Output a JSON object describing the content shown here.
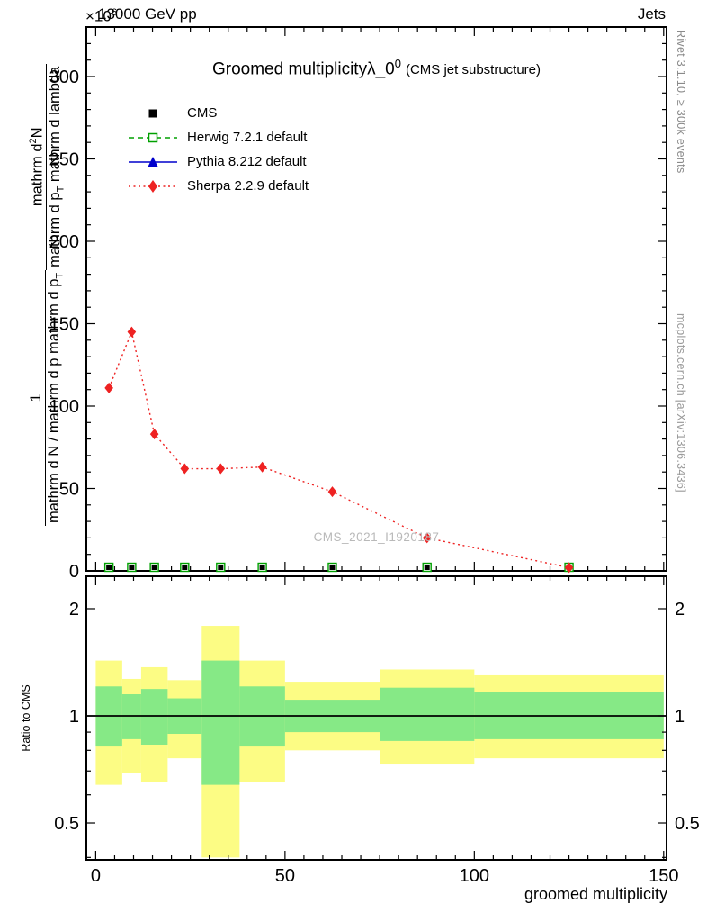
{
  "header": {
    "scale_prefix": "×10",
    "scale_exponent": "6",
    "beam": "13000 GeV pp",
    "right_label": "Jets"
  },
  "title": {
    "main": "Groomed multiplicity",
    "lambda": "λ_0",
    "superscript": "0",
    "suffix": "(CMS jet substructure)"
  },
  "legend": [
    {
      "label": "CMS",
      "marker": "square-filled",
      "line": "none",
      "color": "#000000"
    },
    {
      "label": "Herwig 7.2.1 default",
      "marker": "square-open",
      "line": "dashed",
      "color": "#00a000"
    },
    {
      "label": "Pythia 8.212 default",
      "marker": "triangle-filled",
      "line": "solid",
      "color": "#0000cc"
    },
    {
      "label": "Sherpa 2.2.9 default",
      "marker": "diamond-filled",
      "line": "dotted",
      "color": "#ee2222"
    }
  ],
  "axis_labels": {
    "ylabel_frac1_num": "1",
    "ylabel_frac1_den": "mathrm d N / mathrm d p mathrm d p",
    "ylabel_frac1_den_sub": "T",
    "ylabel_frac2_num_a": "mathrm d",
    "ylabel_frac2_num_sup": "2",
    "ylabel_frac2_num_b": "N",
    "ylabel_frac2_den_a": "mathrm d p",
    "ylabel_frac2_den_sub": "T",
    "ylabel_frac2_den_b": " mathrm d lambda",
    "ratio_ylabel": "Ratio to CMS",
    "xlabel": "groomed multiplicity"
  },
  "side_notes": {
    "top": "Rivet 3.1.10, ≥ 300k events",
    "bottom": "mcplots.cern.ch [arXiv:1306.3436]"
  },
  "watermark": "CMS_2021_I1920187",
  "colors": {
    "frame": "#000000",
    "sherpa_red": "#ee2222",
    "herwig_green": "#00a000",
    "pythia_blue": "#0000cc",
    "band_yellow": "#fcfc84",
    "band_green": "#86e986",
    "watermark_gray": "#b9b9b9"
  },
  "chart_data": {
    "type": "line",
    "title": "Groomed multiplicity λ_0^0 (CMS jet substructure)",
    "xlabel": "groomed multiplicity",
    "ylabel": "1 / (dN/dp_T) · d²N / (dp_T dλ)",
    "y_scale_factor": "×10^6",
    "xlim": [
      -2.5,
      151.5
    ],
    "ylim": [
      0,
      330
    ],
    "x_ticks": [
      0,
      50,
      100,
      150
    ],
    "y_ticks": [
      0,
      50,
      100,
      150,
      200,
      250,
      300
    ],
    "bin_edges": [
      0,
      7,
      12,
      19,
      28,
      38,
      50,
      75,
      100,
      150
    ],
    "series": [
      {
        "name": "Sherpa 2.2.9 default",
        "color": "#ee2222",
        "line": "dotted",
        "marker": "diamond",
        "x": [
          3.5,
          9.5,
          15.5,
          23.5,
          33,
          44,
          62.5,
          87.5,
          125
        ],
        "y": [
          111,
          145,
          83,
          62,
          62,
          63,
          48,
          20,
          2
        ]
      },
      {
        "name": "CMS",
        "color": "#000000",
        "line": "none",
        "marker": "square",
        "x": [
          3.5,
          9.5,
          15.5,
          23.5,
          33,
          44,
          62.5,
          87.5,
          125
        ],
        "y": [
          0,
          0,
          0,
          0,
          0,
          0,
          0,
          0,
          0
        ]
      },
      {
        "name": "Herwig 7.2.1 default",
        "color": "#00a000",
        "line": "dashed",
        "marker": "square-open",
        "x": [
          3.5,
          9.5,
          15.5,
          23.5,
          33,
          44,
          62.5,
          87.5,
          125
        ],
        "y": [
          0,
          0,
          0,
          0,
          0,
          0,
          0,
          0,
          0
        ]
      },
      {
        "name": "Pythia 8.212 default",
        "color": "#0000cc",
        "line": "solid",
        "marker": "triangle",
        "x": [
          3.5,
          9.5,
          15.5,
          23.5,
          33,
          44,
          62.5,
          87.5,
          125
        ],
        "y": [
          0,
          0,
          0,
          0,
          0,
          0,
          0,
          0,
          0
        ]
      }
    ],
    "ratio_panel": {
      "ylabel": "Ratio to CMS",
      "yscale": "log",
      "ylim": [
        0.39,
        2.47
      ],
      "y_ticks": [
        0.5,
        1,
        2
      ],
      "reference_line": 1,
      "band_colors": {
        "outer": "#fcfc84",
        "inner": "#86e986"
      },
      "bands": [
        {
          "x0": 0,
          "x1": 7,
          "outer": [
            0.64,
            1.43
          ],
          "inner": [
            0.82,
            1.21
          ]
        },
        {
          "x0": 7,
          "x1": 12,
          "outer": [
            0.69,
            1.27
          ],
          "inner": [
            0.86,
            1.15
          ]
        },
        {
          "x0": 12,
          "x1": 19,
          "outer": [
            0.65,
            1.37
          ],
          "inner": [
            0.83,
            1.19
          ]
        },
        {
          "x0": 19,
          "x1": 28,
          "outer": [
            0.76,
            1.26
          ],
          "inner": [
            0.89,
            1.12
          ]
        },
        {
          "x0": 28,
          "x1": 38,
          "outer": [
            0.4,
            1.79
          ],
          "inner": [
            0.64,
            1.43
          ]
        },
        {
          "x0": 38,
          "x1": 50,
          "outer": [
            0.65,
            1.43
          ],
          "inner": [
            0.82,
            1.21
          ]
        },
        {
          "x0": 50,
          "x1": 75,
          "outer": [
            0.8,
            1.24
          ],
          "inner": [
            0.9,
            1.11
          ]
        },
        {
          "x0": 75,
          "x1": 100,
          "outer": [
            0.73,
            1.35
          ],
          "inner": [
            0.85,
            1.2
          ]
        },
        {
          "x0": 100,
          "x1": 150,
          "outer": [
            0.76,
            1.3
          ],
          "inner": [
            0.86,
            1.17
          ]
        }
      ]
    }
  }
}
